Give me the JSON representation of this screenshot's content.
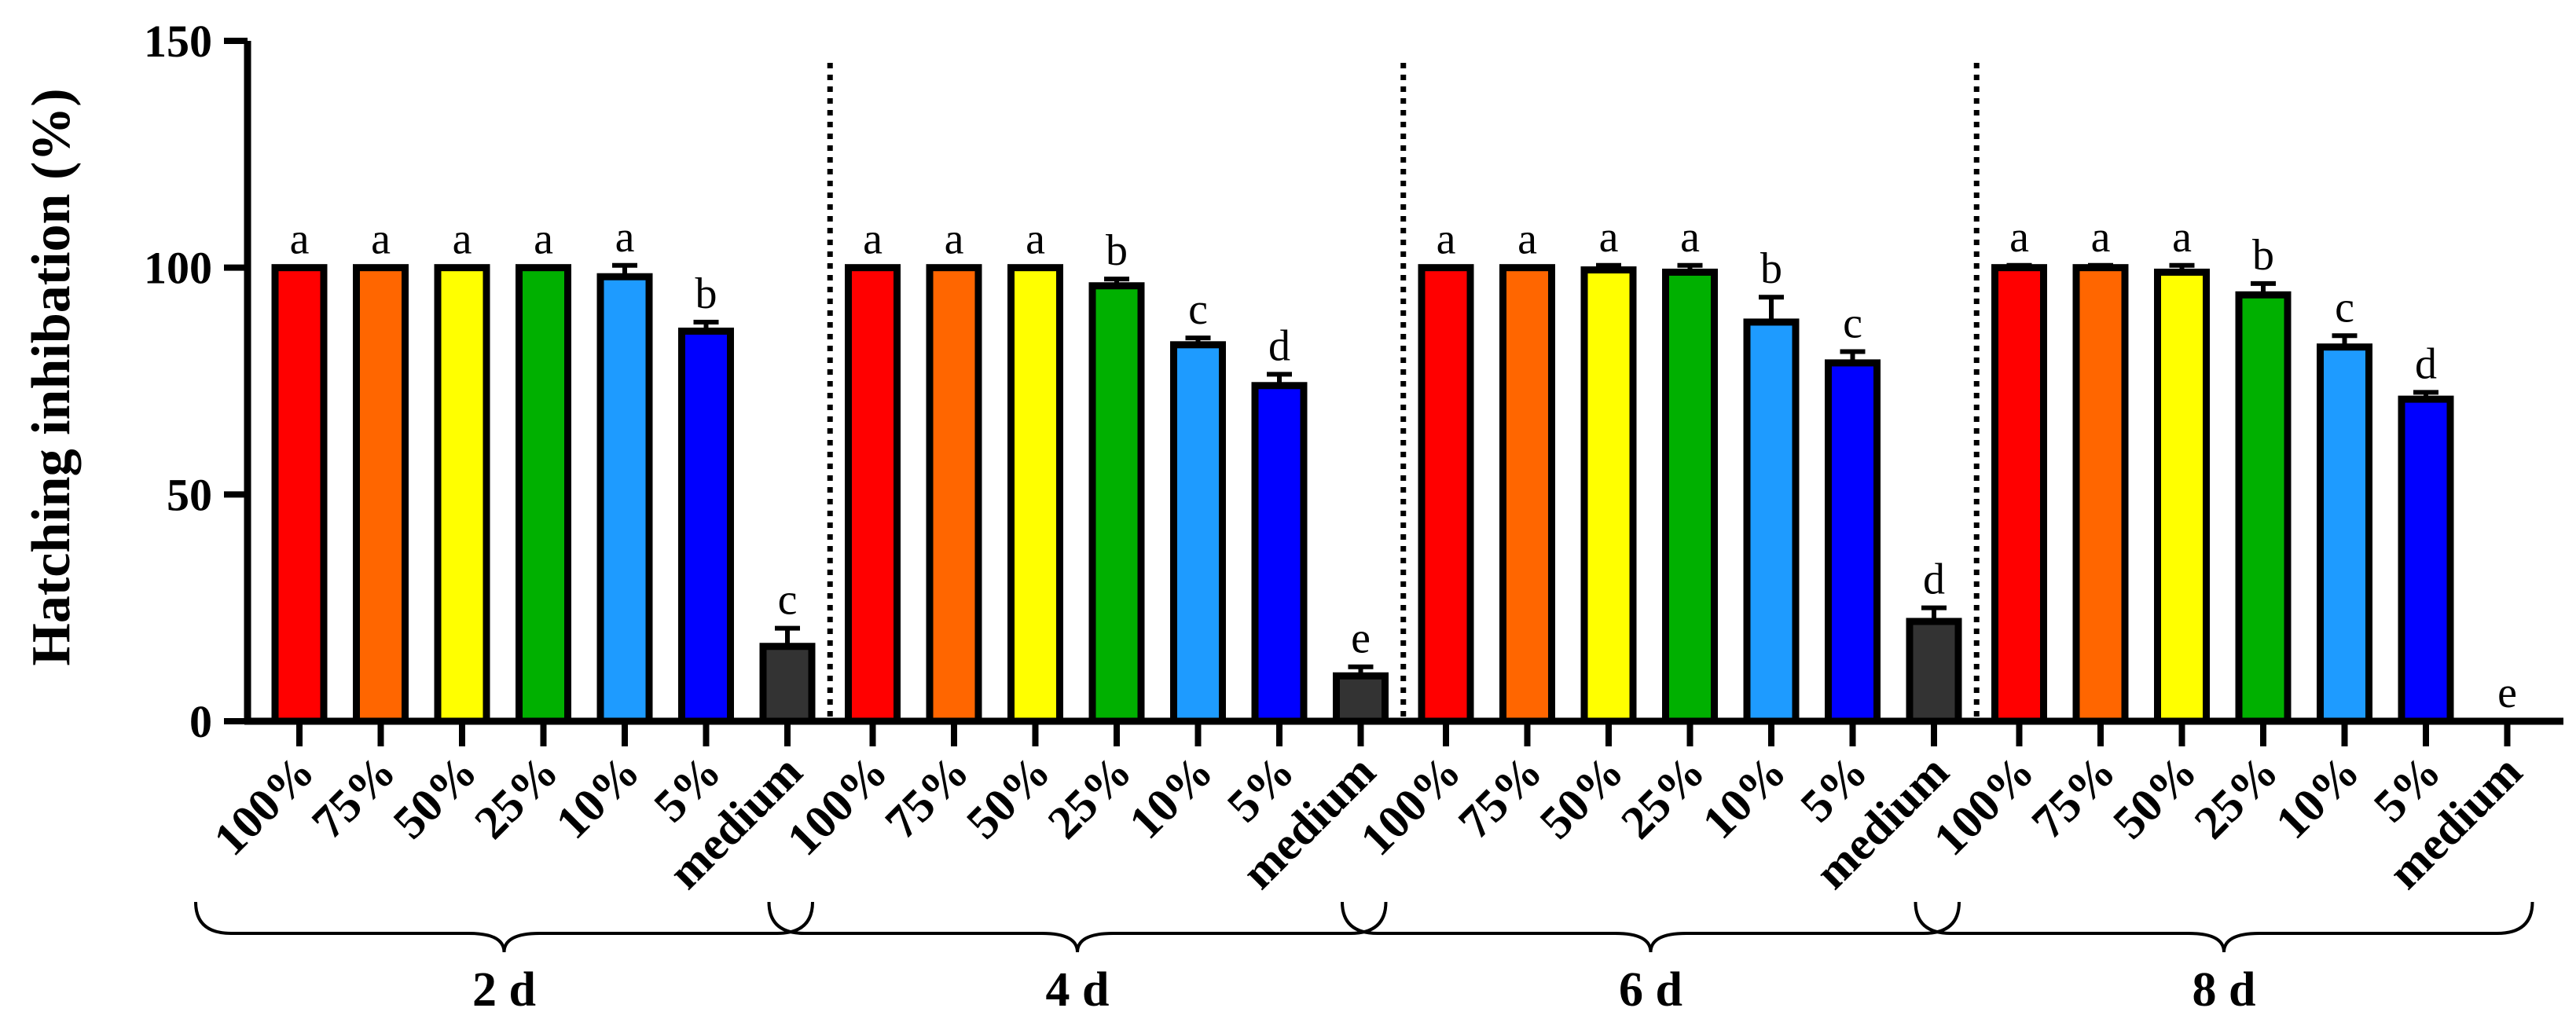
{
  "chart_data": {
    "type": "bar",
    "ylabel": "Hatching inhibation (%)",
    "ylim": [
      0,
      150
    ],
    "yticks": [
      0,
      50,
      100,
      150
    ],
    "categories": [
      "100%",
      "75%",
      "50%",
      "25%",
      "10%",
      "5%",
      "medium"
    ],
    "colors": [
      "#ff0000",
      "#ff6600",
      "#ffff00",
      "#00b000",
      "#1e9bff",
      "#0000ff",
      "#333333"
    ],
    "groups": [
      {
        "name": "2 d",
        "values": [
          100,
          100,
          100,
          100,
          98,
          86,
          16.5
        ],
        "errors": [
          0,
          0,
          0,
          0,
          2.5,
          2,
          4
        ],
        "letters": [
          "a",
          "a",
          "a",
          "a",
          "a",
          "b",
          "c"
        ]
      },
      {
        "name": "4 d",
        "values": [
          100,
          100,
          100,
          96,
          83,
          74,
          10
        ],
        "errors": [
          0,
          0,
          0,
          1.5,
          1.5,
          2.5,
          2
        ],
        "letters": [
          "a",
          "a",
          "a",
          "b",
          "c",
          "d",
          "e"
        ]
      },
      {
        "name": "6 d",
        "values": [
          100,
          100,
          99.5,
          99,
          88,
          79,
          22
        ],
        "errors": [
          0,
          0,
          1,
          1.5,
          5.5,
          2.5,
          3
        ],
        "letters": [
          "a",
          "a",
          "a",
          "a",
          "b",
          "c",
          "d"
        ]
      },
      {
        "name": "8 d",
        "values": [
          100,
          100,
          99,
          94,
          82.5,
          71,
          0
        ],
        "errors": [
          0.5,
          0.5,
          1.5,
          2.5,
          2.5,
          1.5,
          0
        ],
        "letters": [
          "a",
          "a",
          "a",
          "b",
          "c",
          "d",
          "e"
        ]
      }
    ]
  }
}
